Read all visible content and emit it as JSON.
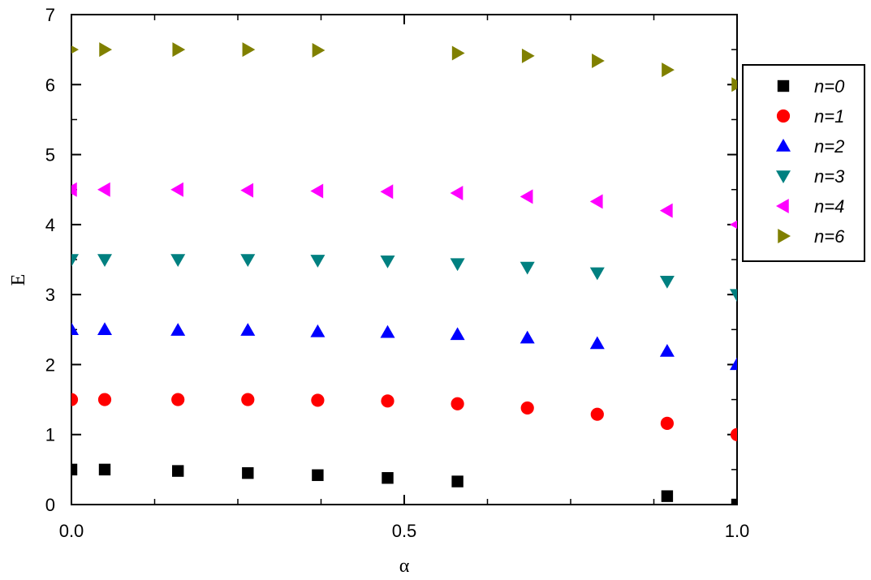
{
  "chart_data": {
    "type": "scatter",
    "title": "",
    "xlabel": "α",
    "ylabel": "E",
    "xlim": [
      0.0,
      1.0
    ],
    "ylim": [
      0,
      7
    ],
    "x_ticks": [
      "0.0",
      "0.5",
      "1.0"
    ],
    "y_ticks": [
      "0",
      "1",
      "2",
      "3",
      "4",
      "5",
      "6",
      "7"
    ],
    "grid": false,
    "legend_position": "right",
    "series": [
      {
        "name": "n=0",
        "marker": "square",
        "color": "#000000",
        "points": [
          [
            0.0,
            0.5
          ],
          [
            0.05,
            0.5
          ],
          [
            0.16,
            0.48
          ],
          [
            0.265,
            0.45
          ],
          [
            0.37,
            0.42
          ],
          [
            0.475,
            0.38
          ],
          [
            0.58,
            0.33
          ],
          [
            0.895,
            0.12
          ],
          [
            1.0,
            0.0
          ]
        ]
      },
      {
        "name": "n=1",
        "marker": "circle",
        "color": "#ff0000",
        "points": [
          [
            0.0,
            1.5
          ],
          [
            0.05,
            1.5
          ],
          [
            0.16,
            1.5
          ],
          [
            0.265,
            1.5
          ],
          [
            0.37,
            1.49
          ],
          [
            0.475,
            1.48
          ],
          [
            0.58,
            1.44
          ],
          [
            0.685,
            1.38
          ],
          [
            0.79,
            1.29
          ],
          [
            0.895,
            1.16
          ],
          [
            1.0,
            1.0
          ]
        ]
      },
      {
        "name": "n=2",
        "marker": "triangle-up",
        "color": "#0000ff",
        "points": [
          [
            0.0,
            2.5
          ],
          [
            0.05,
            2.5
          ],
          [
            0.16,
            2.49
          ],
          [
            0.265,
            2.49
          ],
          [
            0.37,
            2.47
          ],
          [
            0.475,
            2.46
          ],
          [
            0.58,
            2.43
          ],
          [
            0.685,
            2.38
          ],
          [
            0.79,
            2.3
          ],
          [
            0.895,
            2.19
          ],
          [
            1.0,
            2.0
          ]
        ]
      },
      {
        "name": "n=3",
        "marker": "triangle-down",
        "color": "#008080",
        "points": [
          [
            0.0,
            3.5
          ],
          [
            0.05,
            3.5
          ],
          [
            0.16,
            3.5
          ],
          [
            0.265,
            3.5
          ],
          [
            0.37,
            3.49
          ],
          [
            0.475,
            3.48
          ],
          [
            0.58,
            3.44
          ],
          [
            0.685,
            3.39
          ],
          [
            0.79,
            3.31
          ],
          [
            0.895,
            3.19
          ],
          [
            1.0,
            3.0
          ]
        ]
      },
      {
        "name": "n=4",
        "marker": "triangle-left",
        "color": "#ff00ff",
        "points": [
          [
            0.0,
            4.5
          ],
          [
            0.05,
            4.5
          ],
          [
            0.16,
            4.5
          ],
          [
            0.265,
            4.49
          ],
          [
            0.37,
            4.48
          ],
          [
            0.475,
            4.47
          ],
          [
            0.58,
            4.45
          ],
          [
            0.685,
            4.4
          ],
          [
            0.79,
            4.33
          ],
          [
            0.895,
            4.2
          ],
          [
            1.0,
            4.0
          ]
        ]
      },
      {
        "name": "n=6",
        "marker": "triangle-right",
        "color": "#808000",
        "points": [
          [
            0.0,
            6.5
          ],
          [
            0.05,
            6.5
          ],
          [
            0.16,
            6.5
          ],
          [
            0.265,
            6.5
          ],
          [
            0.37,
            6.49
          ],
          [
            0.58,
            6.45
          ],
          [
            0.685,
            6.41
          ],
          [
            0.79,
            6.34
          ],
          [
            0.895,
            6.21
          ],
          [
            1.0,
            6.0
          ]
        ]
      }
    ]
  }
}
